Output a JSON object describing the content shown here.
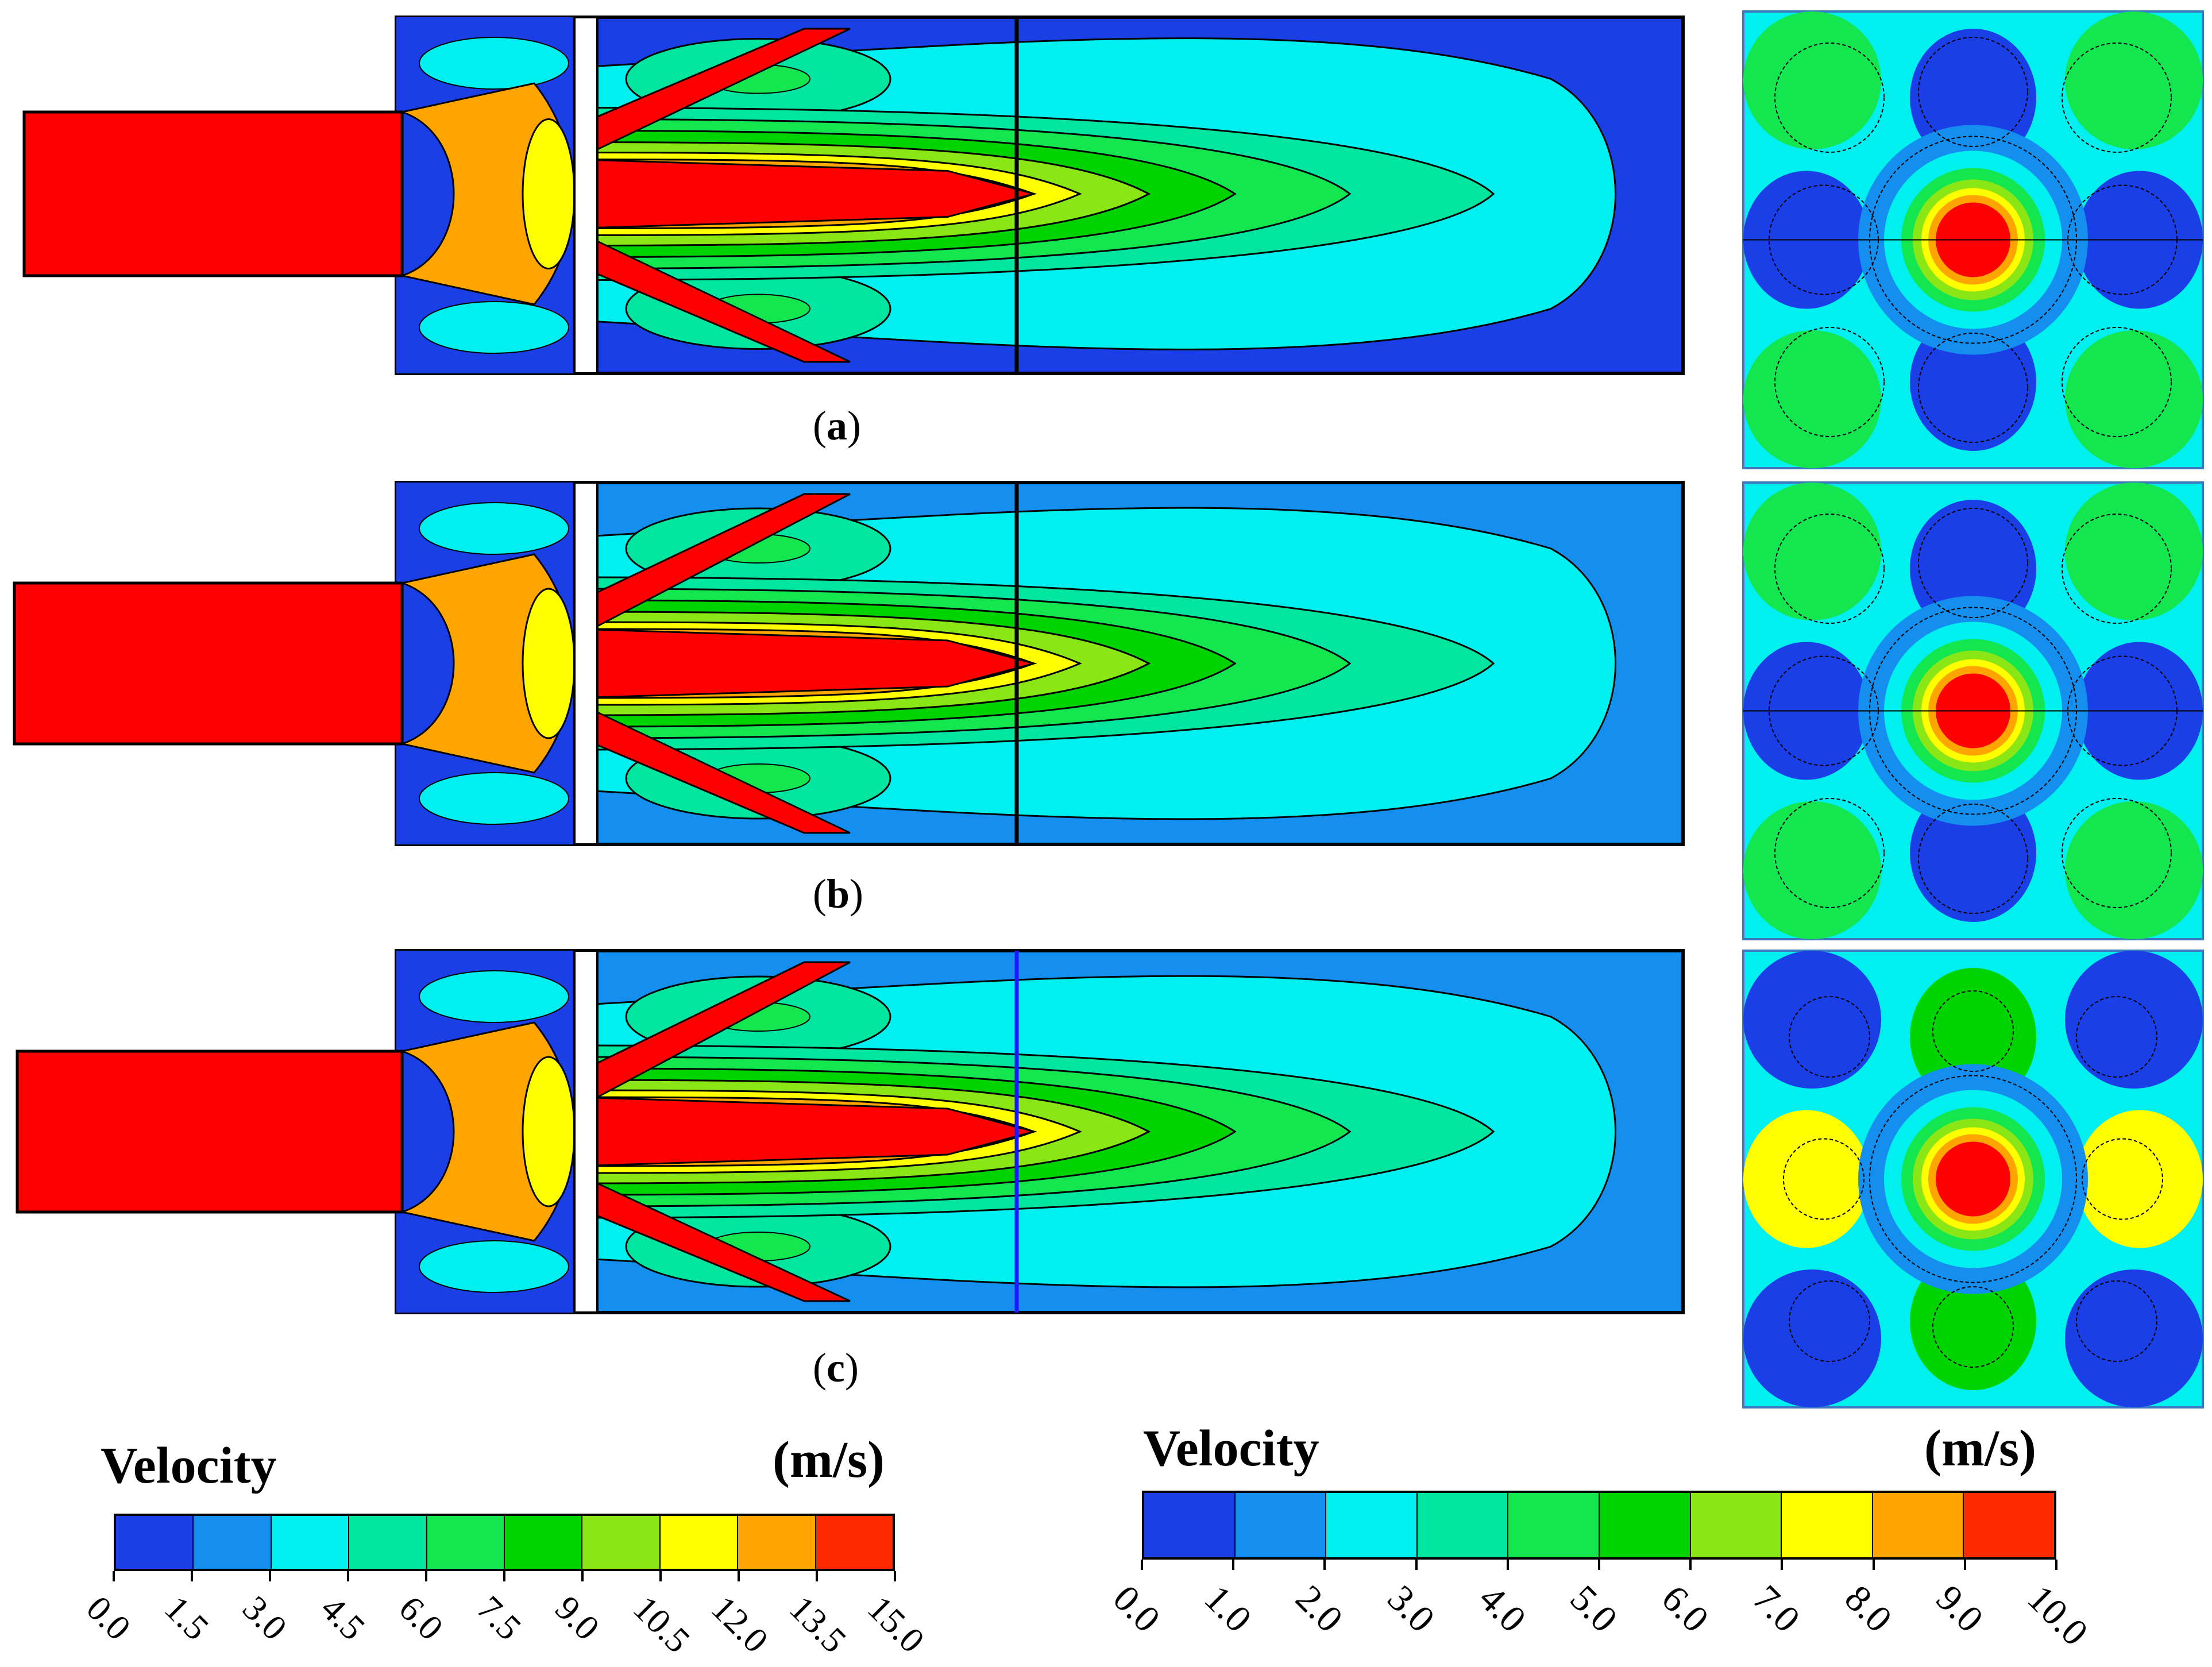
{
  "panels": [
    {
      "label": "a",
      "variant": "a"
    },
    {
      "label": "b",
      "variant": "b"
    },
    {
      "label": "c",
      "variant": "c"
    }
  ],
  "colors": {
    "velocity_bins": [
      "#1a3fe6",
      "#148ff0",
      "#00f0f0",
      "#00e6a0",
      "#14e650",
      "#00d400",
      "#8ae614",
      "#ffff00",
      "#ffa500",
      "#ff2a00"
    ],
    "core_red": "#ff0000",
    "outline": "#000000"
  },
  "legend_left": {
    "title": "Velocity",
    "unit": "(m/s)",
    "ticks": [
      "0.0",
      "1.5",
      "3.0",
      "4.5",
      "6.0",
      "7.5",
      "9.0",
      "10.5",
      "12.0",
      "13.5",
      "15.0"
    ]
  },
  "legend_right": {
    "title": "Velocity",
    "unit": "(m/s)",
    "ticks": [
      "0.0",
      "1.0",
      "2.0",
      "3.0",
      "4.0",
      "5.0",
      "6.0",
      "7.0",
      "8.0",
      "9.0",
      "10.0"
    ]
  }
}
